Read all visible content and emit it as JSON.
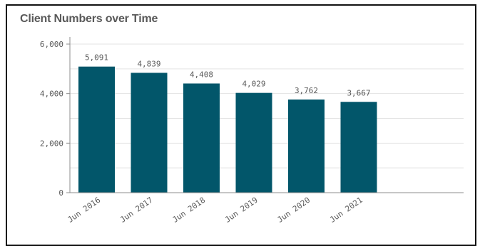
{
  "chart_data": {
    "type": "bar",
    "title": "Client Numbers over Time",
    "xlabel": "",
    "ylabel": "",
    "categories": [
      "Jun 2016",
      "Jun 2017",
      "Jun 2018",
      "Jun 2019",
      "Jun 2020",
      "Jun 2021"
    ],
    "values": [
      5091,
      4839,
      4408,
      4029,
      3762,
      3667
    ],
    "value_labels": [
      "5,091",
      "4,839",
      "4,408",
      "4,029",
      "3,762",
      "3,667"
    ],
    "ylim": [
      0,
      6000
    ],
    "yticks": [
      0,
      2000,
      4000,
      6000
    ],
    "ytick_labels": [
      "0",
      "2,000",
      "4,000",
      "6,000"
    ],
    "grid": true,
    "legend": "none",
    "bar_color": "#02566A",
    "grid_color": "#E3E3E3",
    "axis_color": "#8C8C8C"
  }
}
